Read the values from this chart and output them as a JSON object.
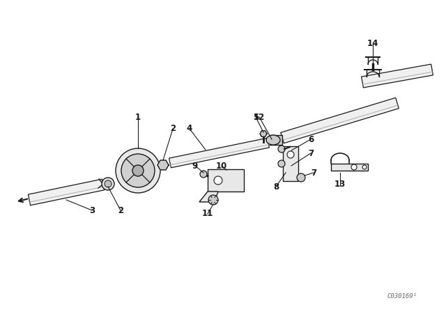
{
  "bg_color": "#ffffff",
  "line_color": "#1a1a1a",
  "watermark": "C030169¹",
  "fig_w": 6.4,
  "fig_h": 4.48,
  "dpi": 100
}
